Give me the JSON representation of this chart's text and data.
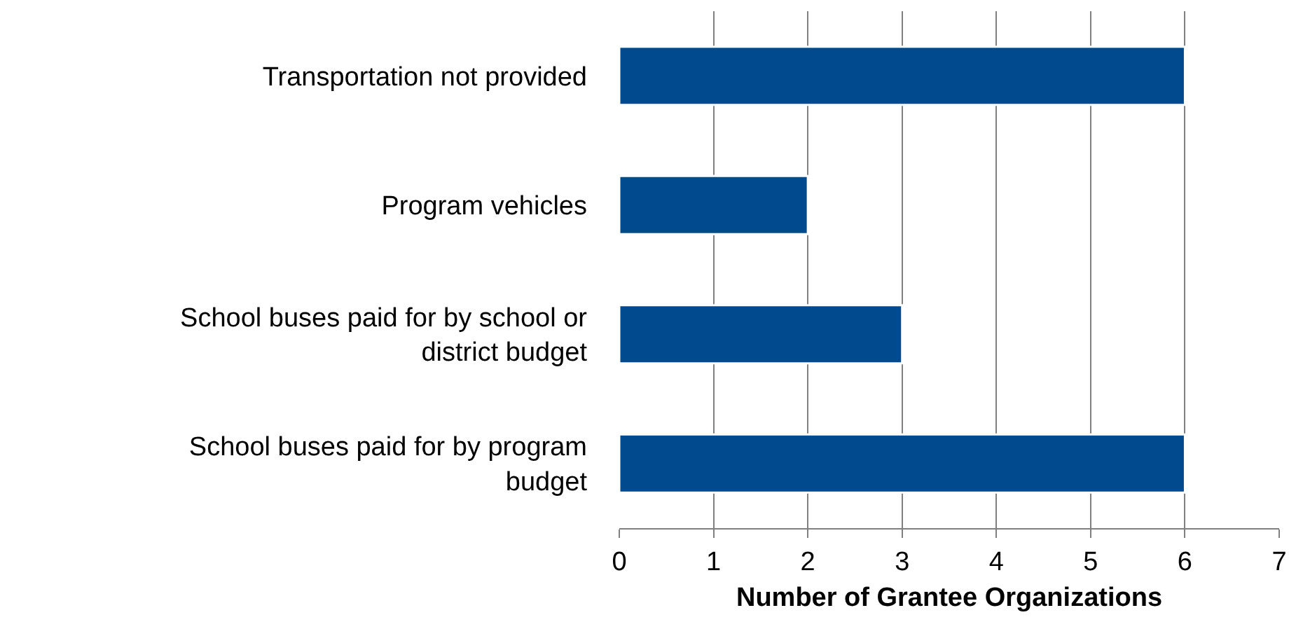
{
  "chart_data": {
    "type": "bar",
    "orientation": "horizontal",
    "xlabel": "Number of Grantee Organizations",
    "categories": [
      "Transportation not provided",
      "Program vehicles",
      "School buses paid for by school or district budget",
      "School buses paid for by program budget"
    ],
    "values": [
      6,
      2,
      3,
      6
    ],
    "color": "#004a8d",
    "xlim": [
      0,
      7
    ],
    "xticks": [
      0,
      1,
      2,
      3,
      4,
      5,
      6,
      7
    ],
    "grid": "x"
  }
}
